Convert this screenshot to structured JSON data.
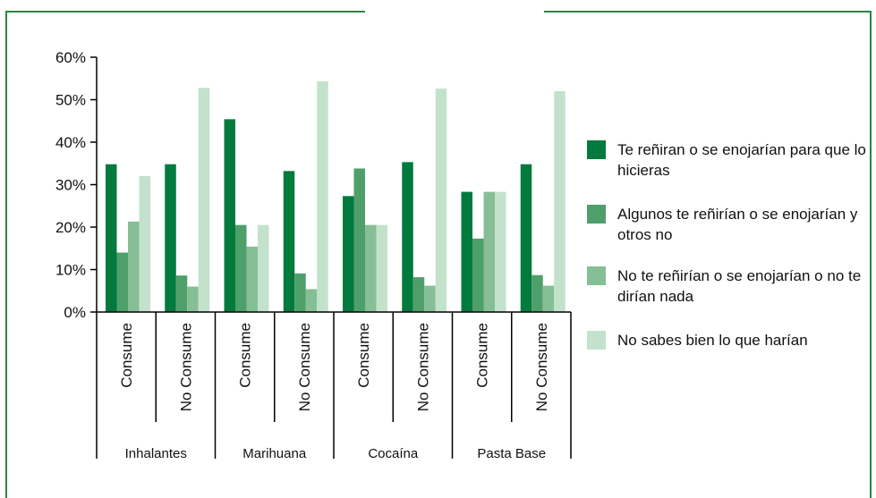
{
  "chart_data": {
    "type": "bar",
    "title": "",
    "xlabel": "",
    "ylabel": "",
    "ylim": [
      0,
      60
    ],
    "y_ticks": [
      "0%",
      "10%",
      "20%",
      "30%",
      "40%",
      "50%",
      "60%"
    ],
    "groups": [
      "Inhalantes",
      "Marihuana",
      "Cocaína",
      "Pasta Base"
    ],
    "subcategories": [
      "Consume",
      "No Consume"
    ],
    "categories": [
      "Inhalantes - Consume",
      "Inhalantes - No Consume",
      "Marihuana - Consume",
      "Marihuana - No Consume",
      "Cocaína - Consume",
      "Cocaína - No Consume",
      "Pasta Base - Consume",
      "Pasta Base - No Consume"
    ],
    "series": [
      {
        "name": "Te reñiran o se enojarían para que lo hicieras",
        "color": "#007a3d",
        "values": [
          34.8,
          34.8,
          45.4,
          33.2,
          27.3,
          35.3,
          28.3,
          34.8
        ]
      },
      {
        "name": "Algunos te reñirían o se enojarían y otros no",
        "color": "#4f9f6b",
        "values": [
          14.0,
          8.6,
          20.5,
          9.1,
          33.8,
          8.2,
          17.3,
          8.7
        ]
      },
      {
        "name": "No te reñirían o se enojarían o no te dirían nada",
        "color": "#86bf96",
        "values": [
          21.3,
          6.0,
          15.4,
          5.4,
          20.5,
          6.2,
          28.3,
          6.2
        ]
      },
      {
        "name": "No sabes bien lo que harían",
        "color": "#c3e2cc",
        "values": [
          32.0,
          52.8,
          20.5,
          54.3,
          20.5,
          52.6,
          28.3,
          52.0
        ]
      }
    ],
    "legend_position": "right",
    "grid": false
  }
}
